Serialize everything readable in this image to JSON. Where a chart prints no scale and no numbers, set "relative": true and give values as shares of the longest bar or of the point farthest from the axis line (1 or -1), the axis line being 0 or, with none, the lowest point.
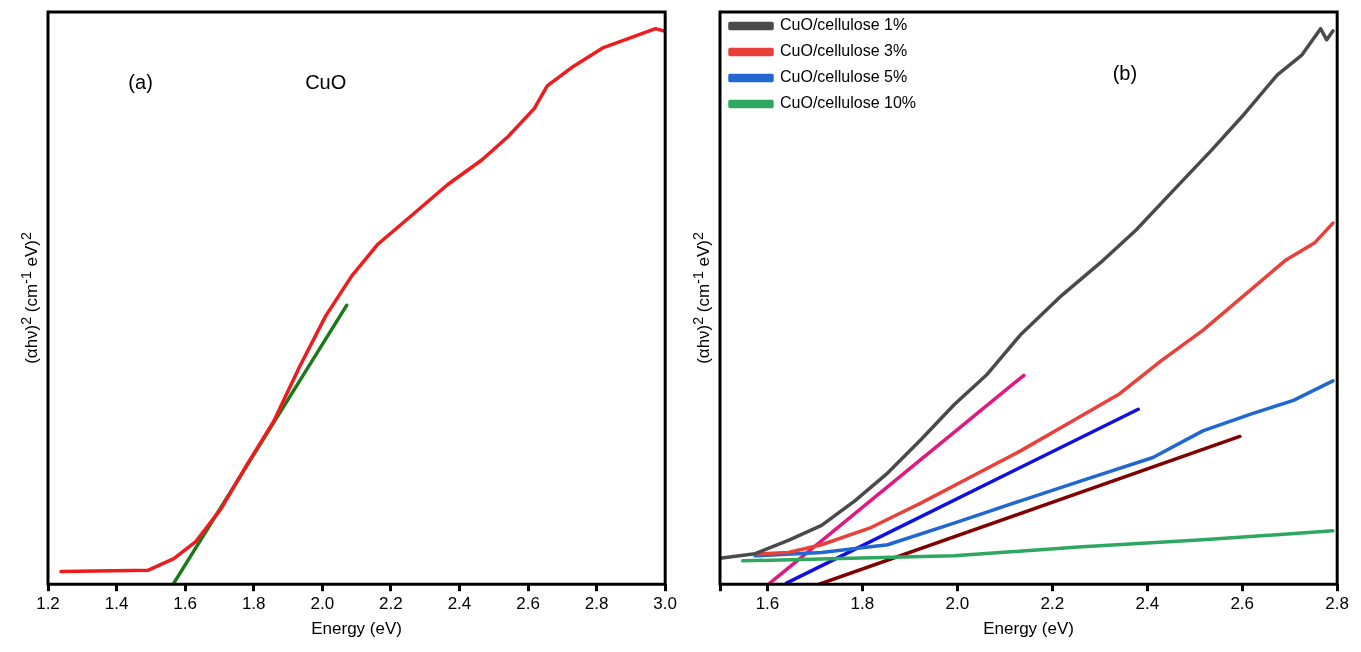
{
  "chart_data": [
    {
      "type": "line",
      "relative": true,
      "xlabel": "Energy (eV)",
      "ylabel": "(αhν)$^{2}$ (cm$^{-1}$ eV)$^{2}$",
      "annotations": [
        "(a)",
        "CuO"
      ],
      "marker": "none",
      "xlim": [
        1.2,
        3.0
      ],
      "xticks": [
        1.2,
        1.4,
        1.6,
        1.8,
        {
          "value": 2,
          "label": "2.0"
        },
        2.2,
        2.4,
        2.6,
        2.8,
        {
          "value": 3,
          "label": "3.0"
        }
      ],
      "series": [
        {
          "color": "#ee1c1c",
          "x": [
            1.238,
            1.491,
            1.567,
            1.63,
            1.706,
            1.782,
            1.858,
            1.934,
            2.01,
            2.086,
            2.162,
            2.263,
            2.365,
            2.466,
            2.542,
            2.618,
            2.656,
            2.732,
            2.82,
            2.922,
            2.972,
            2.995
          ],
          "values": [
            0.023,
            0.025,
            0.046,
            0.076,
            0.137,
            0.217,
            0.293,
            0.392,
            0.483,
            0.555,
            0.612,
            0.665,
            0.719,
            0.764,
            0.806,
            0.856,
            0.897,
            0.932,
            0.966,
            0.989,
            1.0,
            0.996
          ]
        },
        {
          "color": "#1a7a1a",
          "x": [
            1.567,
            2.071
          ],
          "values": [
            0.002,
            0.502
          ]
        }
      ]
    },
    {
      "type": "line",
      "relative": true,
      "xlabel": "Energy (eV)",
      "ylabel": "(αhν)$^{2}$ (cm$^{-1}$ eV)$^{2}$",
      "annotations": [
        "(b)"
      ],
      "marker": "none",
      "legend": "top left",
      "xlim": [
        1.5,
        2.8
      ],
      "xticks": [
        {
          "value": 1.5,
          "label": null
        },
        1.6,
        1.8,
        {
          "value": 2,
          "label": "2.0"
        },
        2.2,
        2.4,
        2.6,
        2.8
      ],
      "series": [
        {
          "name": "CuO/cellulose 1%",
          "color": "#4a4a4a",
          "x": [
            1.504,
            1.574,
            1.644,
            1.714,
            1.784,
            1.853,
            1.923,
            1.993,
            2.063,
            2.133,
            2.22,
            2.307,
            2.377,
            2.464,
            2.534,
            2.604,
            2.674,
            2.726,
            2.765,
            2.778,
            2.791
          ],
          "values": [
            0.047,
            0.055,
            0.079,
            0.106,
            0.15,
            0.2,
            0.26,
            0.323,
            0.378,
            0.449,
            0.52,
            0.583,
            0.638,
            0.717,
            0.78,
            0.846,
            0.917,
            0.953,
            1.0,
            0.98,
            0.996
          ]
        },
        {
          "name": "CuO/cellulose 3%",
          "color": "#e8403a",
          "x": [
            1.574,
            1.644,
            1.714,
            1.818,
            1.923,
            2.028,
            2.133,
            2.237,
            2.342,
            2.429,
            2.517,
            2.604,
            2.691,
            2.752,
            2.791
          ],
          "values": [
            0.054,
            0.057,
            0.071,
            0.102,
            0.146,
            0.193,
            0.24,
            0.291,
            0.343,
            0.402,
            0.457,
            0.52,
            0.583,
            0.614,
            0.65
          ]
        },
        {
          "name": "CuO/cellulose 5%",
          "color": "#2068d0",
          "x": [
            1.574,
            1.714,
            1.853,
            1.993,
            2.133,
            2.272,
            2.412,
            2.517,
            2.621,
            2.708,
            2.791
          ],
          "values": [
            0.051,
            0.057,
            0.071,
            0.11,
            0.15,
            0.189,
            0.228,
            0.276,
            0.307,
            0.331,
            0.366
          ]
        },
        {
          "name": "CuO/cellulose 10%",
          "color": "#2ea860",
          "x": [
            1.548,
            1.731,
            1.993,
            2.255,
            2.517,
            2.791
          ],
          "values": [
            0.042,
            0.046,
            0.051,
            0.067,
            0.08,
            0.096
          ]
        },
        {
          "color": "#e0197f",
          "x": [
            1.605,
            2.14
          ],
          "values": [
            0.002,
            0.376
          ]
        },
        {
          "color": "#1010e0",
          "x": [
            1.64,
            2.381
          ],
          "values": [
            0.002,
            0.315
          ]
        },
        {
          "color": "#800000",
          "x": [
            1.709,
            2.595
          ],
          "values": [
            0.0,
            0.266
          ]
        }
      ]
    }
  ]
}
